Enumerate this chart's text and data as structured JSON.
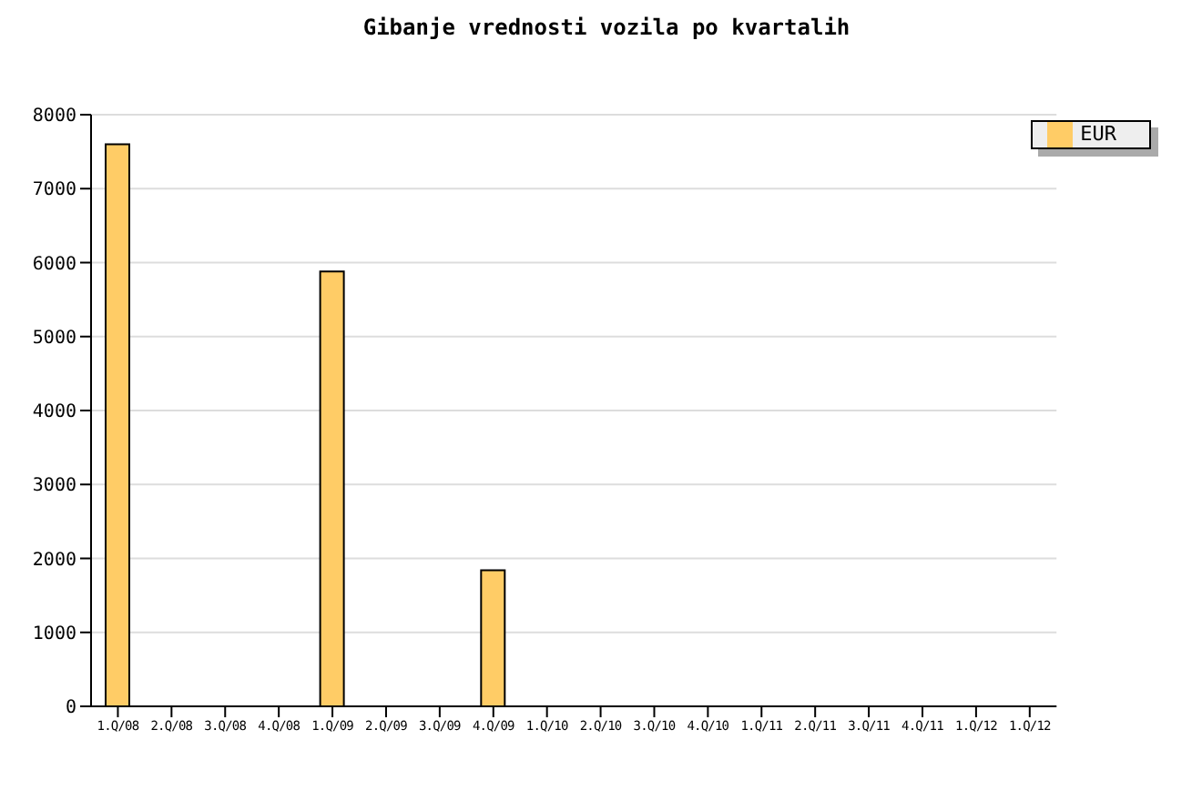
{
  "chart_data": {
    "type": "bar",
    "title": "Gibanje vrednosti vozila po kvartalih",
    "categories": [
      "1.Q/08",
      "2.Q/08",
      "3.Q/08",
      "4.Q/08",
      "1.Q/09",
      "2.Q/09",
      "3.Q/09",
      "4.Q/09",
      "1.Q/10",
      "2.Q/10",
      "3.Q/10",
      "4.Q/10",
      "1.Q/11",
      "2.Q/11",
      "3.Q/11",
      "4.Q/11",
      "1.Q/12",
      "1.Q/12"
    ],
    "series": [
      {
        "name": "EUR",
        "color": "#ffcc66",
        "values": [
          7600,
          null,
          null,
          null,
          5880,
          null,
          null,
          1840,
          null,
          null,
          null,
          null,
          null,
          null,
          null,
          null,
          null,
          null
        ]
      }
    ],
    "ylim": [
      0,
      8000
    ],
    "yticks": [
      0,
      1000,
      2000,
      3000,
      4000,
      5000,
      6000,
      7000,
      8000
    ],
    "grid": "y",
    "legend": "top right"
  }
}
